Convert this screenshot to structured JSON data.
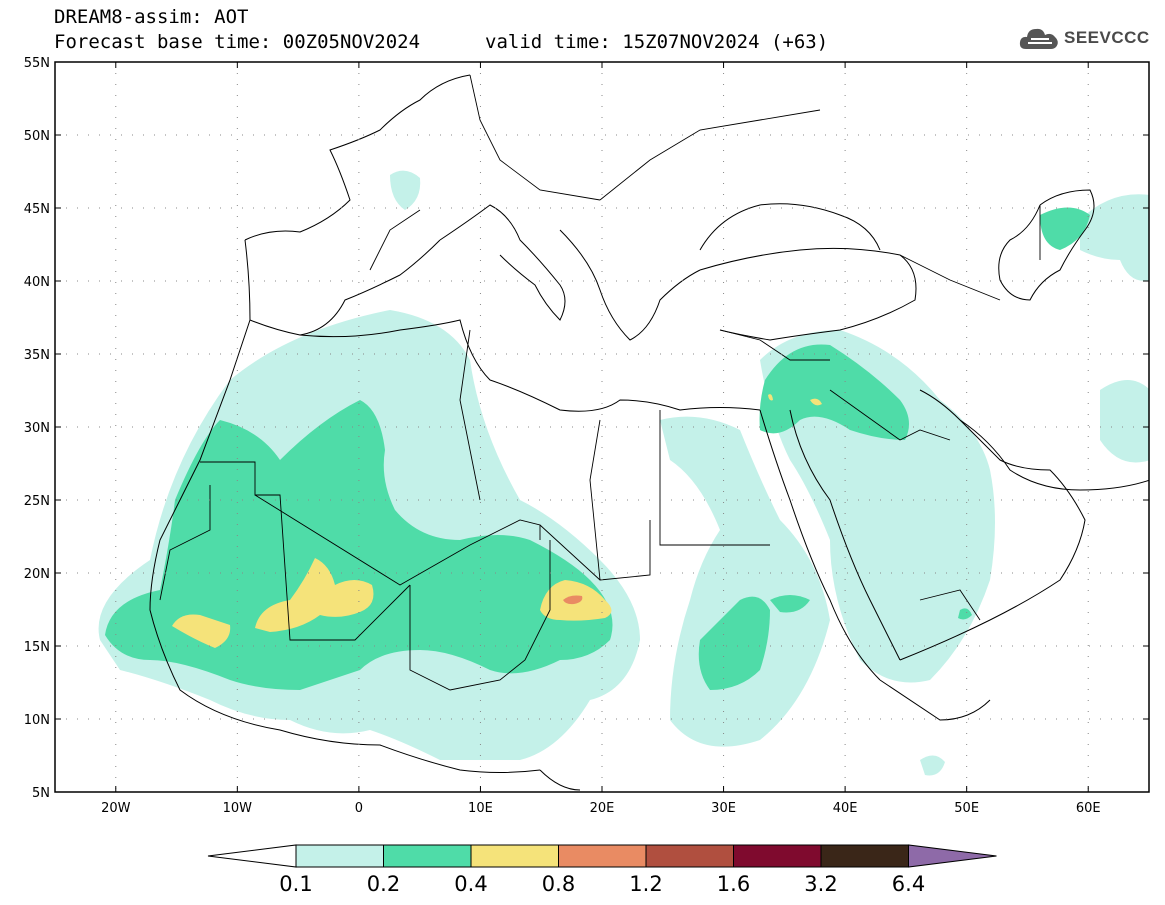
{
  "header": {
    "title_line1": "DREAM8-assim: AOT",
    "base_time": "Forecast base time: 00Z05NOV2024",
    "valid_time": "valid time: 15Z07NOV2024 (+63)"
  },
  "logo": {
    "text": "SEEVCCC",
    "icon": "cloud-icon"
  },
  "map": {
    "lat_labels": [
      "55N",
      "50N",
      "45N",
      "40N",
      "35N",
      "30N",
      "25N",
      "20N",
      "15N",
      "10N",
      "5N"
    ],
    "lon_labels": [
      "20W",
      "10W",
      "0",
      "10E",
      "20E",
      "30E",
      "40E",
      "50E",
      "60E"
    ],
    "grid": true
  },
  "colorbar": {
    "labels": [
      "0.1",
      "0.2",
      "0.4",
      "0.8",
      "1.2",
      "1.6",
      "3.2",
      "6.4"
    ],
    "colors": [
      "#ffffff",
      "#c4f1e9",
      "#4fdca8",
      "#f5e37a",
      "#e98b63",
      "#b04f3f",
      "#7f0a2e",
      "#3a2618",
      "#8e6aa8"
    ]
  }
}
